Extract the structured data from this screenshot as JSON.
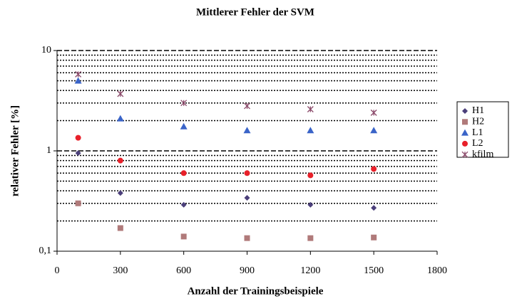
{
  "chart_data": {
    "type": "scatter",
    "title": "Mittlerer Fehler der SVM",
    "x_label": "Anzahl der Trainingsbeispiele",
    "y_label": "relativer Fehler [%]",
    "x": [
      100,
      300,
      600,
      900,
      1200,
      1500
    ],
    "series": [
      {
        "name": "H1",
        "color": "#4b3f7a",
        "marker": "diamond",
        "values": [
          0.95,
          0.38,
          0.29,
          0.34,
          0.29,
          0.27
        ]
      },
      {
        "name": "H2",
        "color": "#b07a7a",
        "marker": "square",
        "values": [
          0.3,
          0.17,
          0.14,
          0.135,
          0.135,
          0.137
        ]
      },
      {
        "name": "L1",
        "color": "#3a64c8",
        "marker": "triangle",
        "values": [
          5.0,
          2.1,
          1.75,
          1.6,
          1.6,
          1.6
        ]
      },
      {
        "name": "L2",
        "color": "#e8202a",
        "marker": "circle",
        "values": [
          1.35,
          0.8,
          0.6,
          0.6,
          0.57,
          0.66
        ]
      },
      {
        "name": "kfilm",
        "color": "#8b4a6a",
        "marker": "cross",
        "values": [
          5.8,
          3.7,
          3.0,
          2.8,
          2.6,
          2.4
        ]
      }
    ],
    "xlim": [
      0,
      1800
    ],
    "xticks": [
      0,
      300,
      600,
      900,
      1200,
      1500,
      1800
    ],
    "ylim": [
      0.1,
      10
    ],
    "yticks": [
      {
        "value": 0.1,
        "label": "0,1"
      },
      1,
      10
    ],
    "log_y": true,
    "grid": true,
    "minor_grid": true,
    "legend": "right"
  }
}
